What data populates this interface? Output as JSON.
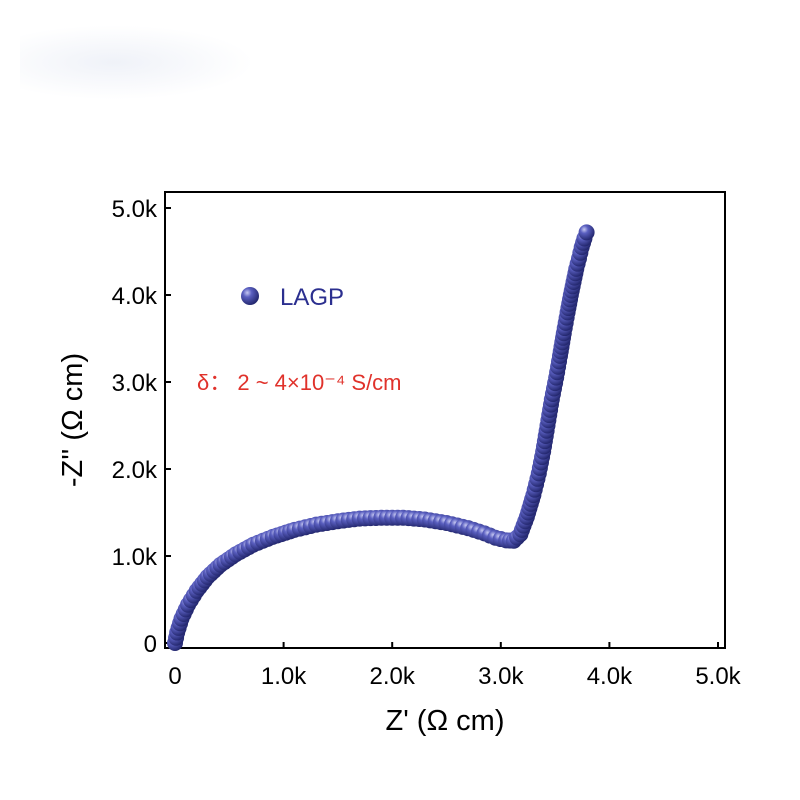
{
  "chart_data": {
    "type": "scatter",
    "title": "",
    "xlabel": "Z' (Ω cm)",
    "ylabel": "-Z'' (Ω cm)",
    "xlim": [
      0,
      5000
    ],
    "ylim": [
      0,
      5000
    ],
    "x_ticks": [
      0,
      1000,
      2000,
      3000,
      4000,
      5000
    ],
    "x_tick_labels": [
      "0",
      "1.0k",
      "2.0k",
      "3.0k",
      "4.0k",
      "5.0k"
    ],
    "y_ticks": [
      0,
      1000,
      2000,
      3000,
      4000,
      5000
    ],
    "y_tick_labels": [
      "0",
      "1.0k",
      "2.0k",
      "3.0k",
      "4.0k",
      "5.0k"
    ],
    "legend": {
      "position": "upper-left",
      "entries": [
        "LAGP"
      ]
    },
    "annotation": "δ： 2 ~ 4×10⁻⁴ S/cm",
    "colors": {
      "marker": "#3a3f9e",
      "marker_highlight": "#a8abe6",
      "fit_line": "#e0322b",
      "annotation": "#e0322b",
      "legend_text": "#2b2f8f"
    },
    "series": [
      {
        "name": "LAGP",
        "x": [
          0,
          20,
          60,
          120,
          200,
          300,
          420,
          560,
          720,
          900,
          1100,
          1300,
          1500,
          1700,
          1900,
          2100,
          2300,
          2500,
          2700,
          2850,
          2950,
          3050,
          3120,
          3180,
          3240,
          3300,
          3350,
          3390,
          3430,
          3470,
          3510,
          3545,
          3580,
          3615,
          3645,
          3670,
          3695,
          3720,
          3745,
          3770,
          3790
        ],
        "y": [
          0,
          120,
          280,
          440,
          600,
          760,
          900,
          1020,
          1130,
          1220,
          1300,
          1360,
          1400,
          1430,
          1440,
          1440,
          1420,
          1380,
          1320,
          1260,
          1210,
          1180,
          1175,
          1250,
          1450,
          1700,
          1950,
          2200,
          2500,
          2800,
          3050,
          3300,
          3560,
          3800,
          4000,
          4150,
          4300,
          4420,
          4550,
          4650,
          4720
        ]
      }
    ]
  }
}
